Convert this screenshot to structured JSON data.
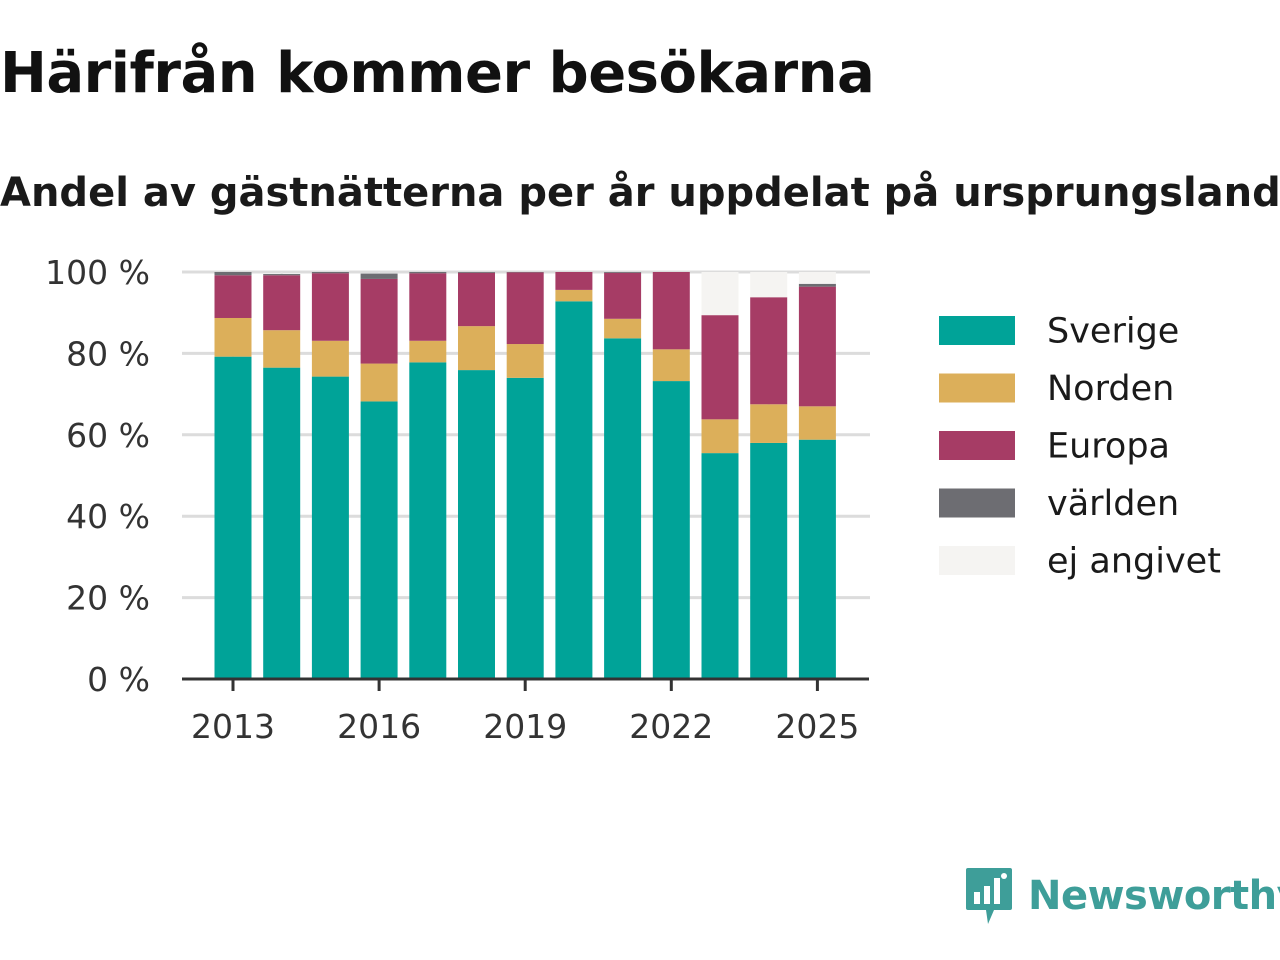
{
  "chart_data": {
    "type": "bar",
    "stacked": true,
    "title": "Härifrån kommer besökarna",
    "subtitle": "Andel av gästnätterna per år uppdelat på ursprungsland",
    "xlabel": "",
    "ylabel": "",
    "ylim": [
      0,
      100
    ],
    "y_tick_labels": [
      "0 %",
      "20 %",
      "40 %",
      "60 %",
      "80 %",
      "100 %"
    ],
    "y_ticks": [
      0,
      20,
      40,
      60,
      80,
      100
    ],
    "x_tick_labels": [
      "2013",
      "2016",
      "2019",
      "2022",
      "2025"
    ],
    "categories": [
      2013,
      2014,
      2015,
      2016,
      2017,
      2018,
      2019,
      2020,
      2021,
      2022,
      2023,
      2024,
      2025
    ],
    "grid": true,
    "legend_position": "right",
    "series": [
      {
        "name": "Sverige",
        "color": "#00a398",
        "values": [
          79.2,
          76.5,
          74.3,
          68.2,
          77.8,
          75.9,
          74.0,
          92.8,
          83.7,
          73.2,
          55.5,
          58.0,
          58.8
        ]
      },
      {
        "name": "Norden",
        "color": "#dcaf5a",
        "values": [
          9.5,
          9.2,
          8.8,
          9.3,
          5.3,
          10.8,
          8.3,
          2.8,
          4.8,
          7.8,
          8.3,
          9.5,
          8.2
        ]
      },
      {
        "name": "Europa",
        "color": "#a63c65",
        "values": [
          10.5,
          13.5,
          16.6,
          20.8,
          16.6,
          13.1,
          17.6,
          4.4,
          11.3,
          19.0,
          25.6,
          26.3,
          29.4
        ]
      },
      {
        "name": "världen",
        "color": "#6d6d72",
        "values": [
          0.8,
          0.3,
          0.3,
          1.3,
          0.3,
          0.2,
          0.1,
          0.0,
          0.2,
          0.0,
          0.0,
          0.0,
          0.7
        ]
      },
      {
        "name": "ej angivet",
        "color": "#f5f4f2",
        "values": [
          0.0,
          0.0,
          0.0,
          0.0,
          0.0,
          0.0,
          0.0,
          0.0,
          0.0,
          0.0,
          10.6,
          6.2,
          2.9
        ]
      }
    ]
  },
  "brand": {
    "name": "Newsworthy",
    "color": "#3e9e99",
    "icon": "newsworthy-logo-icon"
  }
}
